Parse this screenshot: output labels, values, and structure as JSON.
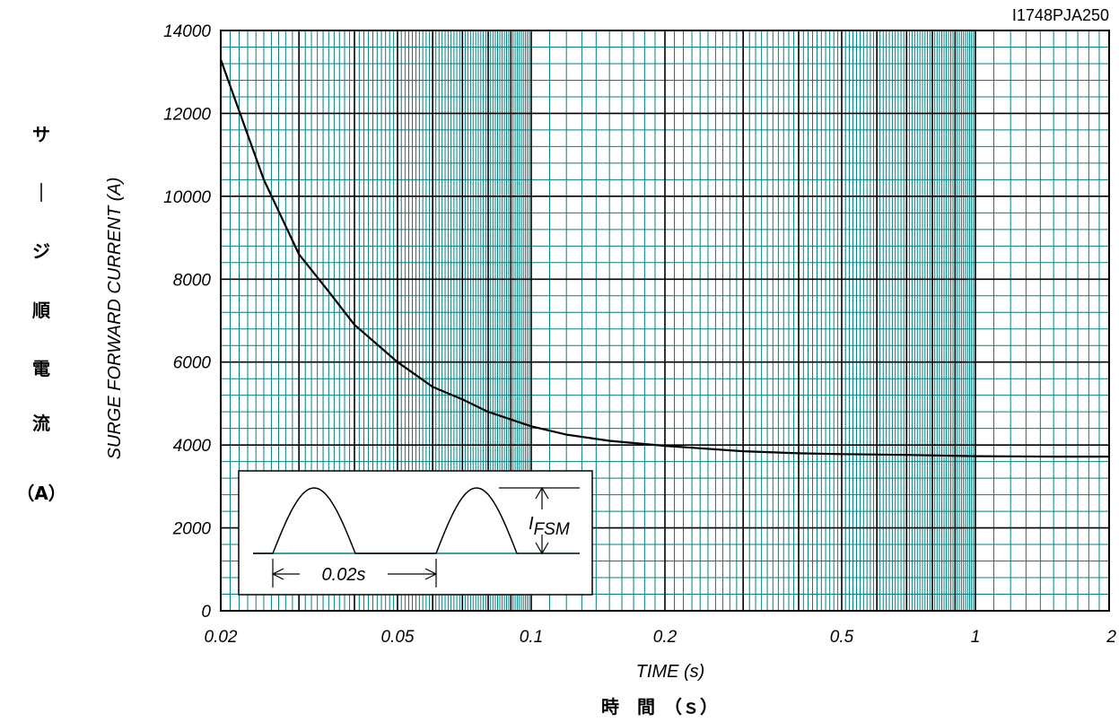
{
  "figure_code": "I1748PJA250",
  "chart_data": {
    "type": "line",
    "x_scale": "log",
    "xlim": [
      0.02,
      2
    ],
    "ylim": [
      0,
      14000
    ],
    "grid": true,
    "xticks": [
      0.02,
      0.05,
      0.1,
      0.2,
      0.5,
      1,
      2
    ],
    "xtick_labels": [
      "0.02",
      "0.05",
      "0.1",
      "0.2",
      "0.5",
      "1",
      "2"
    ],
    "yticks": [
      0,
      2000,
      4000,
      6000,
      8000,
      10000,
      12000,
      14000
    ],
    "ytick_labels": [
      "0",
      "2000",
      "4000",
      "6000",
      "8000",
      "10000",
      "12000",
      "14000"
    ],
    "xlabel": "TIME (s)",
    "xlabel_jp": "時　間　（ｓ）",
    "ylabel": "SURGE FORWARD CURRENT (A)",
    "ylabel_jp": [
      "サ",
      "｜",
      "ジ",
      "順",
      "電",
      "流",
      "（A）"
    ],
    "series": [
      {
        "x": [
          0.02,
          0.025,
          0.03,
          0.035,
          0.04,
          0.05,
          0.06,
          0.07,
          0.08,
          0.1,
          0.12,
          0.15,
          0.2,
          0.3,
          0.4,
          0.5,
          0.7,
          1,
          1.5,
          2
        ],
        "y": [
          13300,
          10400,
          8600,
          7700,
          6900,
          6000,
          5400,
          5100,
          4800,
          4450,
          4250,
          4100,
          3980,
          3850,
          3800,
          3780,
          3760,
          3730,
          3720,
          3720
        ]
      }
    ],
    "colors": {
      "major_grid": "#000000",
      "minor_grid": "#008080",
      "curve": "#000000"
    },
    "inset": {
      "label_main": "I",
      "label_sub": "FSM",
      "period_label": "0.02s"
    }
  }
}
